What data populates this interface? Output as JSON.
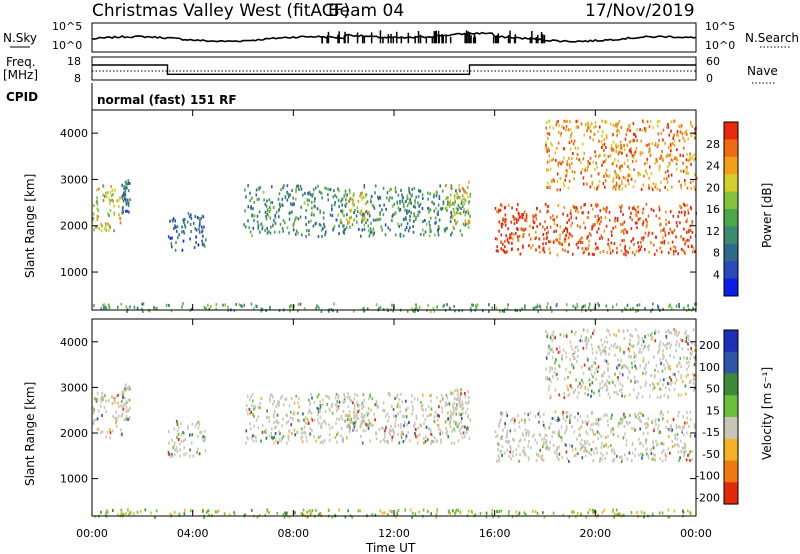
{
  "header": {
    "radar": "Christmas Valley West (fitACF)",
    "beam": "Beam 04",
    "date": "17/Nov/2019",
    "cpid_label": "CPID",
    "cpid_value": "normal (fast) 151 RF"
  },
  "chart_data": [
    {
      "type": "line",
      "name": "n-sky-n-search-panel",
      "left_label": "N.Sky",
      "right_label": "N.Search",
      "left_ticks": [
        "10^5",
        "10^0"
      ],
      "right_ticks": [
        "10^5",
        "10^0"
      ],
      "note": "noise levels across the day, log scale",
      "scale": "log"
    },
    {
      "type": "line",
      "name": "frequency-nave-panel",
      "left_label_line1": "Freq.",
      "left_label_line2": "[MHz]",
      "right_label": "Nave",
      "left_ticks": [
        18,
        8
      ],
      "right_ticks": [
        60,
        0
      ],
      "freq_steps": [
        {
          "from": "00:00",
          "to": "03:00",
          "value": 14.5
        },
        {
          "from": "03:00",
          "to": "15:00",
          "value": 10.5
        },
        {
          "from": "15:00",
          "to": "24:00",
          "value": 14.5
        }
      ]
    },
    {
      "type": "heatmap",
      "name": "power-panel",
      "ylabel": "Slant Range [km]",
      "yticks": [
        1000,
        2000,
        3000,
        4000
      ],
      "ylim": [
        180,
        4500
      ],
      "colorbar_label": "Power [dB]",
      "colorbar_ticks": [
        4,
        8,
        12,
        16,
        20,
        24,
        28
      ],
      "colorbar_colors": [
        "#0a1ee8",
        "#2c49b8",
        "#2f6a8a",
        "#3d8a70",
        "#4ea64b",
        "#83c23c",
        "#d4cf2a",
        "#f2a019",
        "#f06a12",
        "#e8290c"
      ],
      "regions": [
        {
          "t0": "00:00",
          "t1": "01:10",
          "r0": 1900,
          "r1": 2900,
          "level": 20
        },
        {
          "t0": "01:10",
          "t1": "01:30",
          "r0": 2300,
          "r1": 3100,
          "level": 10
        },
        {
          "t0": "03:00",
          "t1": "04:30",
          "r0": 1500,
          "r1": 2300,
          "level": 9
        },
        {
          "t0": "06:00",
          "t1": "15:00",
          "r0": 1800,
          "r1": 2900,
          "level": 12
        },
        {
          "t0": "10:00",
          "t1": "11:00",
          "r0": 2100,
          "r1": 2800,
          "level": 20
        },
        {
          "t0": "14:00",
          "t1": "15:00",
          "r0": 2000,
          "r1": 3000,
          "level": 20
        },
        {
          "t0": "16:00",
          "t1": "24:00",
          "r0": 1400,
          "r1": 2500,
          "level": 28
        },
        {
          "t0": "18:00",
          "t1": "24:00",
          "r0": 2800,
          "r1": 4300,
          "level": 24
        },
        {
          "t0": "00:00",
          "t1": "24:00",
          "r0": 180,
          "r1": 350,
          "level": 14
        }
      ]
    },
    {
      "type": "heatmap",
      "name": "velocity-panel",
      "ylabel": "Slant Range [km]",
      "yticks": [
        1000,
        2000,
        3000,
        4000
      ],
      "ylim": [
        180,
        4500
      ],
      "colorbar_label": "Velocity [m s⁻¹]",
      "colorbar_ticks": [
        200,
        100,
        50,
        15,
        -15,
        -50,
        -100,
        -200
      ],
      "colorbar_colors": [
        "#1f2fb8",
        "#2f55a8",
        "#3c8a3a",
        "#6cbf3a",
        "#c8c6b8",
        "#f5b226",
        "#f07a10",
        "#e02a0a"
      ],
      "xticks": [
        "00:00",
        "04:00",
        "08:00",
        "12:00",
        "16:00",
        "20:00",
        "00:00"
      ],
      "xlabel": "Time UT"
    }
  ]
}
